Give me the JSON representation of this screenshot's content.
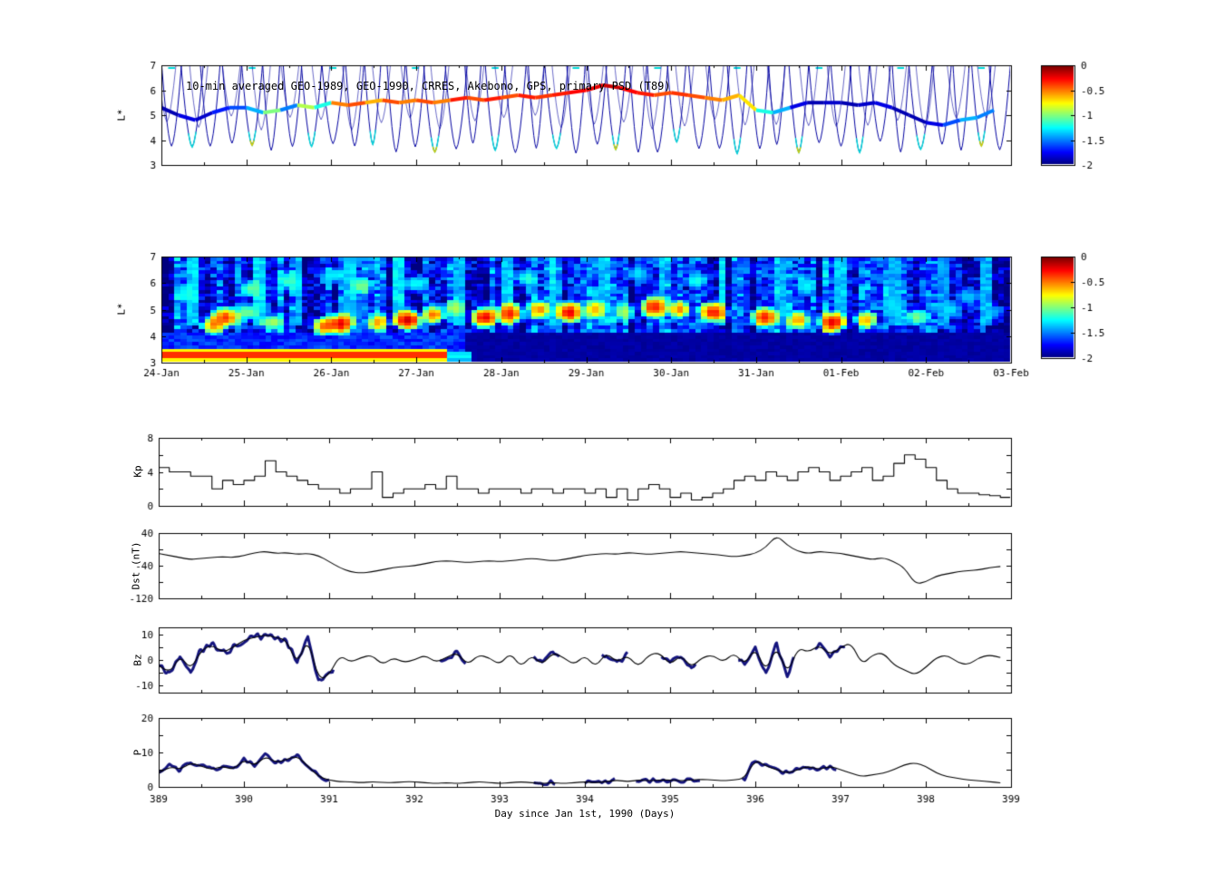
{
  "figure": {
    "background": "#ffffff",
    "xlabel": "Day since Jan 1st, 1990 (Days)",
    "x_ticks_days": [
      389,
      390,
      391,
      392,
      393,
      394,
      395,
      396,
      397,
      398,
      399
    ],
    "date_tick_labels": [
      "24-Jan",
      "25-Jan",
      "26-Jan",
      "27-Jan",
      "28-Jan",
      "29-Jan",
      "30-Jan",
      "31-Jan",
      "01-Feb",
      "02-Feb",
      "03-Feb"
    ]
  },
  "colorbar": {
    "min": -2,
    "max": 0,
    "tick_values": [
      0,
      -0.5,
      -1,
      -1.5,
      -2
    ],
    "tick_labels": [
      "0",
      "-0.5",
      "-1",
      "-1.5",
      "-2"
    ]
  },
  "chart_data": [
    {
      "id": "psd_track",
      "type": "line",
      "title": "10-min averaged GEO-1989, GEO-1990, CRRES, Akebono, GPS, primary PSD (T89)",
      "ylabel": "L*",
      "ylim": [
        3,
        7
      ],
      "yticks": [
        3,
        4,
        5,
        6,
        7
      ],
      "xlim": [
        389,
        399
      ],
      "colorbar_range": [
        -2,
        0
      ],
      "track": {
        "x_start": 389.0,
        "x_step": 0.2,
        "L": [
          5.3,
          5.0,
          4.8,
          5.1,
          5.3,
          5.3,
          5.1,
          5.2,
          5.4,
          5.3,
          5.5,
          5.4,
          5.5,
          5.6,
          5.5,
          5.6,
          5.5,
          5.6,
          5.7,
          5.6,
          5.7,
          5.8,
          5.7,
          5.8,
          5.9,
          6.0,
          6.2,
          6.1,
          5.9,
          5.8,
          5.9,
          5.8,
          5.7,
          5.6,
          5.8,
          5.2,
          5.1,
          5.3,
          5.5,
          5.5,
          5.5,
          5.4,
          5.5,
          5.3,
          5.0,
          4.7,
          4.6,
          4.8,
          4.9,
          5.2
        ],
        "value": [
          -1.9,
          -1.8,
          -1.85,
          -1.7,
          -1.6,
          -1.4,
          -1.0,
          -1.5,
          -0.9,
          -1.2,
          -0.5,
          -0.4,
          -0.6,
          -0.4,
          -0.5,
          -0.4,
          -0.5,
          -0.3,
          -0.4,
          -0.3,
          -0.4,
          -0.3,
          -0.35,
          -0.3,
          -0.25,
          -0.2,
          -0.15,
          -0.25,
          -0.3,
          -0.4,
          -0.35,
          -0.4,
          -0.5,
          -0.6,
          -0.7,
          -1.2,
          -1.4,
          -1.8,
          -1.9,
          -1.85,
          -1.9,
          -1.85,
          -1.8,
          -1.9,
          -1.9,
          -1.8,
          -1.6,
          -1.4,
          -1.5,
          -1.45
        ]
      },
      "orbits": {
        "count": 42,
        "l_bottom_min": 3.45,
        "l_bottom_max": 3.95,
        "color_value": -1.9,
        "secondary_count": 28,
        "secondary_bottom": 4.7
      }
    },
    {
      "id": "psd_heatmap",
      "type": "heatmap",
      "ylabel": "L*",
      "ylim": [
        3,
        7
      ],
      "yticks": [
        3,
        4,
        5,
        6,
        7
      ],
      "xlim": [
        389,
        399
      ],
      "value_range": [
        -2,
        0
      ],
      "base_value": -1.72,
      "noise_seed": 7,
      "stripes": [
        {
          "x0": 389.0,
          "x1": 392.35,
          "l0": 3.03,
          "l1": 3.47,
          "core": -0.15,
          "edge": -0.9
        },
        {
          "x0": 392.35,
          "x1": 392.65,
          "l0": 3.03,
          "l1": 3.42,
          "core": -1.2,
          "edge": -1.45
        }
      ],
      "blobs": [
        [
          389.6,
          4.4,
          -0.5
        ],
        [
          389.75,
          4.7,
          -0.35
        ],
        [
          390.05,
          5.8,
          -1.05
        ],
        [
          390.3,
          4.5,
          -0.9
        ],
        [
          390.9,
          4.35,
          -0.45
        ],
        [
          391.1,
          4.45,
          -0.2
        ],
        [
          391.35,
          5.9,
          -1.0
        ],
        [
          391.55,
          4.5,
          -0.55
        ],
        [
          391.9,
          4.6,
          -0.15
        ],
        [
          392.2,
          4.8,
          -0.45
        ],
        [
          392.45,
          5.05,
          -0.9
        ],
        [
          392.8,
          4.7,
          -0.2
        ],
        [
          393.1,
          4.85,
          -0.3
        ],
        [
          393.45,
          5.0,
          -0.5
        ],
        [
          393.8,
          4.9,
          -0.2
        ],
        [
          394.1,
          5.0,
          -0.6
        ],
        [
          394.45,
          4.9,
          -0.9
        ],
        [
          394.8,
          5.1,
          -0.3
        ],
        [
          395.1,
          5.0,
          -0.5
        ],
        [
          395.5,
          4.9,
          -0.25
        ],
        [
          396.1,
          4.7,
          -0.3
        ],
        [
          396.5,
          4.6,
          -0.55
        ],
        [
          396.9,
          4.5,
          -0.2
        ],
        [
          397.3,
          4.6,
          -0.6
        ],
        [
          397.9,
          4.7,
          -1.0
        ],
        [
          398.3,
          5.0,
          -1.3
        ],
        [
          390.5,
          6.1,
          -1.1
        ],
        [
          391.0,
          6.3,
          -1.25
        ],
        [
          392.0,
          6.0,
          -1.2
        ],
        [
          393.3,
          6.2,
          -1.15
        ],
        [
          394.6,
          6.4,
          -1.3
        ],
        [
          395.3,
          6.1,
          -1.2
        ],
        [
          396.6,
          5.9,
          -1.25
        ],
        [
          389.3,
          5.6,
          -1.2
        ],
        [
          390.0,
          4.9,
          -1.0
        ],
        [
          397.6,
          5.2,
          -1.3
        ],
        [
          398.5,
          5.5,
          -1.35
        ],
        [
          398.8,
          4.9,
          -1.4
        ]
      ],
      "streaks": [
        [
          389.35,
          -1.35
        ],
        [
          390.15,
          -1.3
        ],
        [
          390.6,
          -1.4
        ],
        [
          391.2,
          -1.35
        ],
        [
          391.8,
          -1.3
        ],
        [
          392.5,
          -1.4
        ],
        [
          393.05,
          -1.35
        ],
        [
          393.6,
          -1.3
        ],
        [
          394.2,
          -1.4
        ],
        [
          394.9,
          -1.35
        ],
        [
          395.6,
          -1.3
        ],
        [
          396.3,
          -1.4
        ],
        [
          397.0,
          -1.35
        ],
        [
          397.65,
          -1.4
        ],
        [
          398.2,
          -1.45
        ],
        [
          398.7,
          -1.4
        ]
      ]
    },
    {
      "id": "kp",
      "type": "line",
      "line_style": "step",
      "ylabel": "Kp",
      "ylim": [
        0,
        8
      ],
      "yticks": [
        0,
        4,
        8
      ],
      "ytick_step": 2,
      "x_start": 389,
      "x_step": 0.125,
      "values": [
        4.5,
        4,
        4,
        3.5,
        3.5,
        2,
        3,
        2.5,
        3,
        3.5,
        5.3,
        4,
        3.5,
        3,
        2.5,
        2,
        2,
        1.5,
        2,
        2,
        4,
        1,
        1.5,
        2,
        2,
        2.5,
        2,
        3.5,
        2,
        2,
        1.5,
        2,
        2,
        2,
        1.5,
        2,
        2,
        1.5,
        2,
        2,
        1.5,
        2,
        1,
        2,
        0.7,
        2,
        2.5,
        2,
        1,
        1.5,
        0.7,
        1,
        1.5,
        2,
        3,
        3.5,
        3,
        4,
        3.5,
        3,
        4,
        4.5,
        4,
        3,
        3.5,
        4,
        4.5,
        3,
        3.5,
        5,
        6,
        5.5,
        4.5,
        3,
        2,
        1.5,
        1.5,
        1.3,
        1.2,
        1
      ]
    },
    {
      "id": "dst",
      "type": "line",
      "ylabel": "Dst (nT)",
      "ylim": [
        -120,
        40
      ],
      "yticks": [
        -120,
        -40,
        40
      ],
      "ytick_step": 40,
      "x_start": 389,
      "x_step": 0.125,
      "values": [
        -10,
        -15,
        -20,
        -25,
        -22,
        -20,
        -18,
        -20,
        -15,
        -8,
        -5,
        -10,
        -8,
        -12,
        -10,
        -15,
        -30,
        -45,
        -55,
        -58,
        -55,
        -50,
        -45,
        -42,
        -40,
        -35,
        -30,
        -28,
        -30,
        -32,
        -30,
        -28,
        -30,
        -28,
        -25,
        -22,
        -25,
        -28,
        -25,
        -20,
        -15,
        -12,
        -10,
        -12,
        -8,
        -10,
        -12,
        -10,
        -8,
        -5,
        -8,
        -10,
        -12,
        -15,
        -18,
        -15,
        -10,
        5,
        35,
        10,
        -5,
        -10,
        -5,
        -8,
        -10,
        -15,
        -20,
        -25,
        -20,
        -30,
        -45,
        -85,
        -80,
        -65,
        -60,
        -55,
        -52,
        -50,
        -45,
        -42
      ]
    },
    {
      "id": "bz",
      "type": "line",
      "ylabel": "Bz",
      "ylim": [
        -13,
        13
      ],
      "yticks": [
        -10,
        0,
        10
      ],
      "ytick_step": 5,
      "x_start": 389,
      "x_step": 0.125,
      "values": [
        -2,
        -6,
        2,
        -4,
        4,
        6,
        3,
        5,
        8,
        9,
        10,
        9,
        8,
        -2,
        9,
        -8,
        -6,
        2,
        -1,
        1,
        2,
        -2,
        1,
        -1,
        0,
        2,
        -1,
        1,
        3,
        -2,
        2,
        1,
        -2,
        3,
        -3,
        2,
        -2,
        3,
        1,
        -2,
        2,
        -3,
        3,
        -1,
        2,
        -3,
        2,
        3,
        -2,
        2,
        -3,
        1,
        2,
        -1,
        3,
        -2,
        5,
        -5,
        6,
        -6,
        5,
        3,
        6,
        2,
        5,
        7,
        -2,
        2,
        3,
        -2,
        -4,
        -6,
        -3,
        1,
        2,
        -1,
        -2,
        1,
        2,
        1
      ],
      "highlight_color": "#14147e",
      "highlight_amp": 1.5,
      "highlight_ranges": [
        [
          389,
          391.05
        ],
        [
          392.3,
          392.6
        ],
        [
          393.4,
          393.7
        ],
        [
          394.2,
          394.5
        ],
        [
          394.9,
          395.3
        ],
        [
          395.8,
          396.45
        ],
        [
          396.7,
          397.05
        ]
      ]
    },
    {
      "id": "p",
      "type": "line",
      "ylabel": "P",
      "ylim": [
        0,
        20
      ],
      "yticks": [
        0,
        10,
        20
      ],
      "ytick_step": 5,
      "x_start": 389,
      "x_step": 0.125,
      "values": [
        4,
        6,
        5,
        7,
        6,
        5,
        6,
        5,
        8,
        6,
        9,
        7,
        8,
        9,
        6,
        3,
        2,
        1.5,
        1.5,
        1.2,
        1.5,
        1.3,
        1.2,
        1.5,
        1.5,
        1.2,
        1,
        1.2,
        1,
        1.2,
        1.5,
        1.3,
        1,
        1.2,
        1.5,
        1.2,
        1,
        1.2,
        1,
        1.2,
        1.5,
        1.2,
        1.5,
        2,
        1.5,
        2,
        1.8,
        2,
        2,
        1.8,
        2,
        2.2,
        2,
        1.8,
        2,
        2.5,
        8,
        6,
        5,
        4,
        5,
        6,
        5,
        6,
        5,
        4,
        3,
        3.5,
        4,
        5,
        6.5,
        7,
        6,
        4,
        3,
        2.5,
        2,
        1.8,
        1.5,
        1.2
      ],
      "highlight_color": "#14147e",
      "highlight_amp": 0.7,
      "highlight_ranges": [
        [
          389,
          391.0
        ],
        [
          393.4,
          393.65
        ],
        [
          394.0,
          394.35
        ],
        [
          394.6,
          395.35
        ],
        [
          395.85,
          396.95
        ]
      ]
    }
  ]
}
